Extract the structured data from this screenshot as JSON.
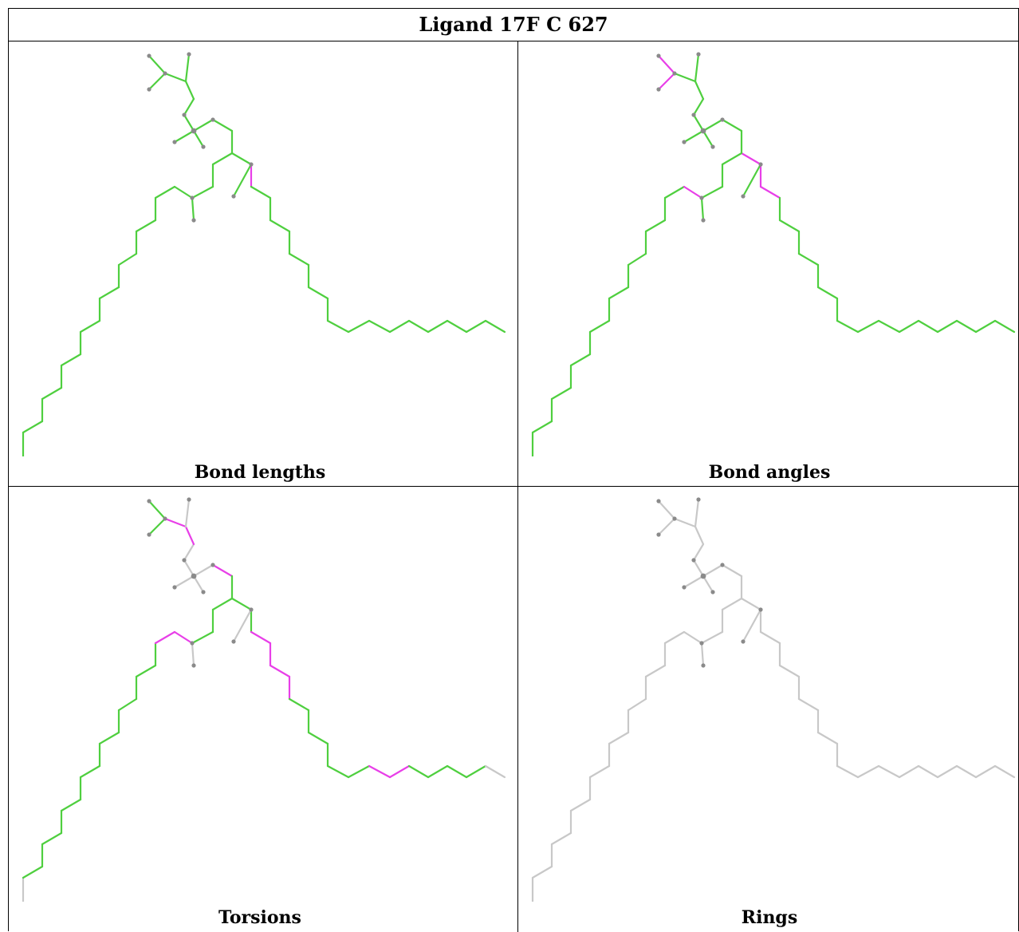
{
  "title": "Ligand 17F C 627",
  "panels": [
    {
      "id": "bond-lengths",
      "caption": "Bond lengths"
    },
    {
      "id": "bond-angles",
      "caption": "Bond angles"
    },
    {
      "id": "torsions",
      "caption": "Torsions"
    },
    {
      "id": "rings",
      "caption": "Rings"
    }
  ],
  "colors": {
    "ok": "#4fcf3f",
    "outlier": "#e83fe8",
    "none": "#c8c8c8",
    "atom": "#8a8a8a",
    "border": "#000000"
  }
}
